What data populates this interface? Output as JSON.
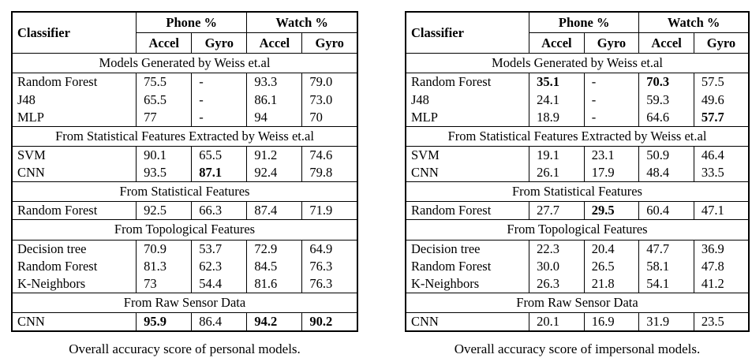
{
  "page": {
    "background": "#ffffff",
    "text_color": "#000000",
    "border_color": "#000000"
  },
  "tables": [
    {
      "id": "personal",
      "caption": "Overall accuracy score of personal models.",
      "header": {
        "classifier": "Classifier",
        "groups": [
          {
            "key": "phone",
            "label": "Phone %"
          },
          {
            "key": "watch",
            "label": "Watch %"
          }
        ],
        "subcols": [
          "Accel",
          "Gyro",
          "Accel",
          "Gyro"
        ]
      },
      "sections": [
        {
          "title": "Models Generated by Weiss et.al",
          "rows": [
            {
              "name": "Random Forest",
              "values": [
                "75.5",
                "-",
                "93.3",
                "79.0"
              ],
              "bold": [
                false,
                false,
                false,
                false
              ]
            },
            {
              "name": "J48",
              "values": [
                "65.5",
                "-",
                "86.1",
                "73.0"
              ],
              "bold": [
                false,
                false,
                false,
                false
              ]
            },
            {
              "name": "MLP",
              "values": [
                "77",
                "-",
                "94",
                "70"
              ],
              "bold": [
                false,
                false,
                false,
                false
              ]
            }
          ]
        },
        {
          "title": "From Statistical Features Extracted by Weiss et.al",
          "rows": [
            {
              "name": "SVM",
              "values": [
                "90.1",
                "65.5",
                "91.2",
                "74.6"
              ],
              "bold": [
                false,
                false,
                false,
                false
              ]
            },
            {
              "name": "CNN",
              "values": [
                "93.5",
                "87.1",
                "92.4",
                "79.8"
              ],
              "bold": [
                false,
                true,
                false,
                false
              ]
            }
          ]
        },
        {
          "title": "From Statistical Features",
          "rows": [
            {
              "name": "Random Forest",
              "values": [
                "92.5",
                "66.3",
                "87.4",
                "71.9"
              ],
              "bold": [
                false,
                false,
                false,
                false
              ]
            }
          ]
        },
        {
          "title": "From Topological Features",
          "rows": [
            {
              "name": "Decision tree",
              "values": [
                "70.9",
                "53.7",
                "72.9",
                "64.9"
              ],
              "bold": [
                false,
                false,
                false,
                false
              ]
            },
            {
              "name": "Random Forest",
              "values": [
                "81.3",
                "62.3",
                "84.5",
                "76.3"
              ],
              "bold": [
                false,
                false,
                false,
                false
              ]
            },
            {
              "name": "K-Neighbors",
              "values": [
                "73",
                "54.4",
                "81.6",
                "76.3"
              ],
              "bold": [
                false,
                false,
                false,
                false
              ]
            }
          ]
        },
        {
          "title": "From Raw Sensor Data",
          "rows": [
            {
              "name": "CNN",
              "values": [
                "95.9",
                "86.4",
                "94.2",
                "90.2"
              ],
              "bold": [
                true,
                false,
                true,
                true
              ]
            }
          ]
        }
      ]
    },
    {
      "id": "impersonal",
      "caption": "Overall accuracy score of impersonal models.",
      "header": {
        "classifier": "Classifier",
        "groups": [
          {
            "key": "phone",
            "label": "Phone %"
          },
          {
            "key": "watch",
            "label": "Watch %"
          }
        ],
        "subcols": [
          "Accel",
          "Gyro",
          "Accel",
          "Gyro"
        ]
      },
      "sections": [
        {
          "title": "Models Generated by Weiss et.al",
          "rows": [
            {
              "name": "Random Forest",
              "values": [
                "35.1",
                "-",
                "70.3",
                "57.5"
              ],
              "bold": [
                true,
                false,
                true,
                false
              ]
            },
            {
              "name": "J48",
              "values": [
                "24.1",
                "-",
                "59.3",
                "49.6"
              ],
              "bold": [
                false,
                false,
                false,
                false
              ]
            },
            {
              "name": "MLP",
              "values": [
                "18.9",
                "-",
                "64.6",
                "57.7"
              ],
              "bold": [
                false,
                false,
                false,
                true
              ]
            }
          ]
        },
        {
          "title": "From Statistical Features Extracted by Weiss et.al",
          "rows": [
            {
              "name": "SVM",
              "values": [
                "19.1",
                "23.1",
                "50.9",
                "46.4"
              ],
              "bold": [
                false,
                false,
                false,
                false
              ]
            },
            {
              "name": "CNN",
              "values": [
                "26.1",
                "17.9",
                "48.4",
                "33.5"
              ],
              "bold": [
                false,
                false,
                false,
                false
              ]
            }
          ]
        },
        {
          "title": "From Statistical Features",
          "rows": [
            {
              "name": "Random Forest",
              "values": [
                "27.7",
                "29.5",
                "60.4",
                "47.1"
              ],
              "bold": [
                false,
                true,
                false,
                false
              ]
            }
          ]
        },
        {
          "title": "From Topological Features",
          "rows": [
            {
              "name": "Decision tree",
              "values": [
                "22.3",
                "20.4",
                "47.7",
                "36.9"
              ],
              "bold": [
                false,
                false,
                false,
                false
              ]
            },
            {
              "name": "Random Forest",
              "values": [
                "30.0",
                "26.5",
                "58.1",
                "47.8"
              ],
              "bold": [
                false,
                false,
                false,
                false
              ]
            },
            {
              "name": "K-Neighbors",
              "values": [
                "26.3",
                "21.8",
                "54.1",
                "41.2"
              ],
              "bold": [
                false,
                false,
                false,
                false
              ]
            }
          ]
        },
        {
          "title": "From Raw Sensor Data",
          "rows": [
            {
              "name": "CNN",
              "values": [
                "20.1",
                "16.9",
                "31.9",
                "23.5"
              ],
              "bold": [
                false,
                false,
                false,
                false
              ]
            }
          ]
        }
      ]
    }
  ]
}
